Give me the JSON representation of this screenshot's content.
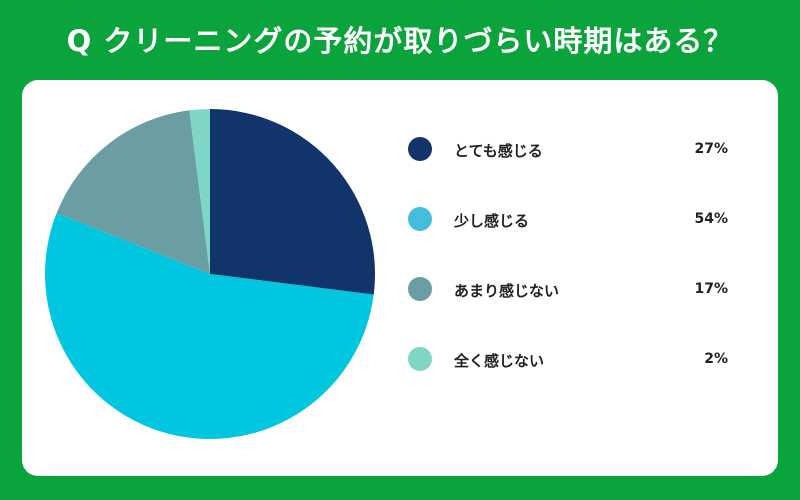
{
  "header": {
    "title": "Q クリーニングの予約が取りづらい時期はある？"
  },
  "chart_data": {
    "type": "pie",
    "categories": [
      "とても感じる",
      "少し感じる",
      "あまり感じない",
      "全く感じない"
    ],
    "values": [
      27,
      54,
      17,
      2
    ],
    "value_labels": [
      "27%",
      "54%",
      "17%",
      "2%"
    ],
    "colors": [
      "#11346b",
      "#00c6e0",
      "#6a9ea3",
      "#7fd6c6"
    ],
    "legend_colors": [
      "#11346b",
      "#45bede",
      "#6a9ea3",
      "#7fd6c6"
    ],
    "unit": "%",
    "legend_position": "right"
  }
}
